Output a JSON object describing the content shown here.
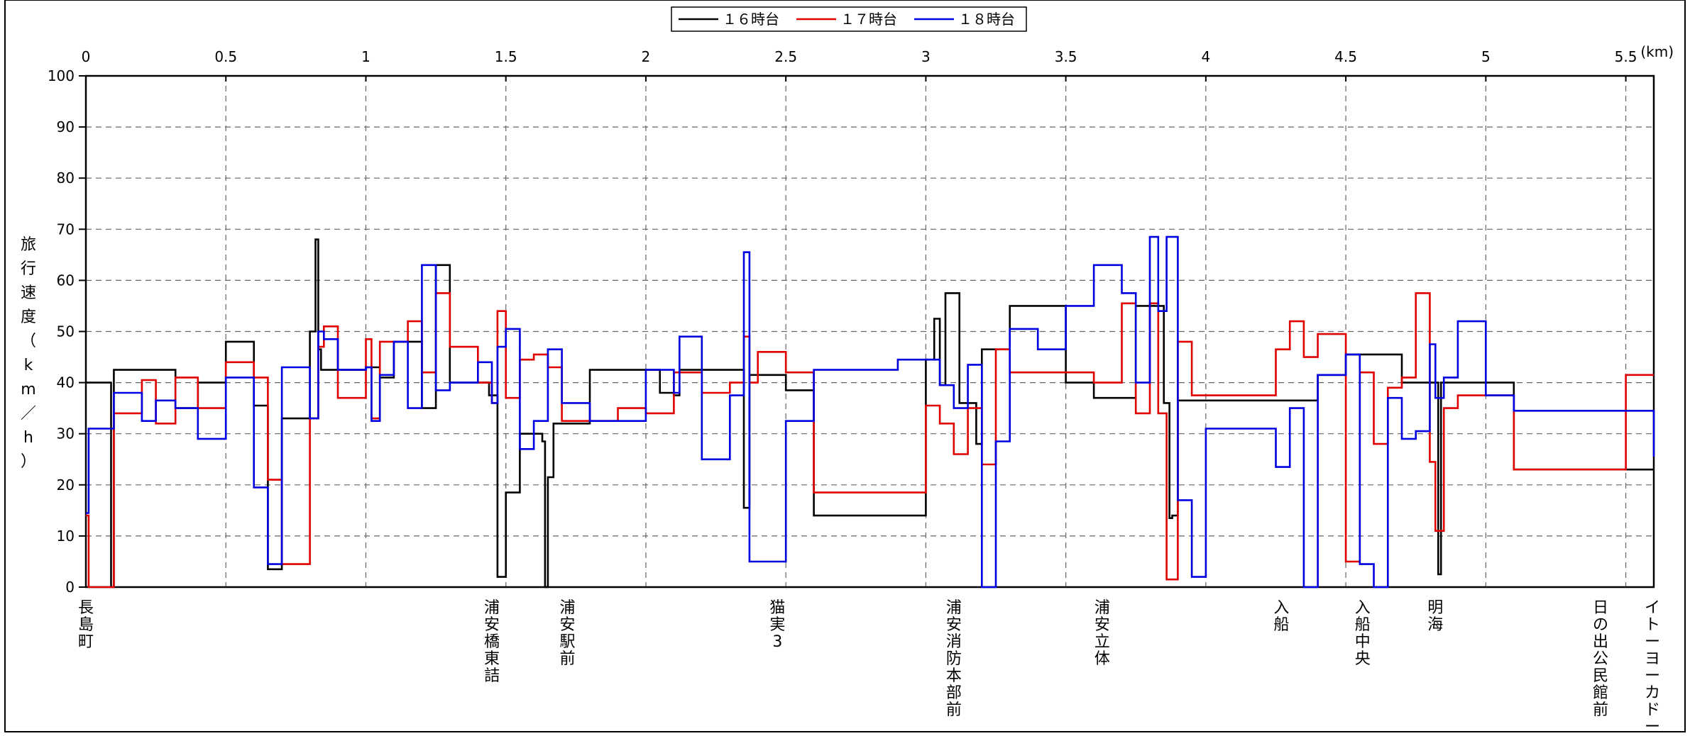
{
  "chart_data": {
    "type": "line",
    "step": true,
    "title": "",
    "xlabel_unit": "(km)",
    "ylabel": "旅行速度（km／h）",
    "xlim": [
      0,
      5.6
    ],
    "ylim": [
      0,
      100
    ],
    "x_ticks": [
      0,
      0.5,
      1,
      1.5,
      2,
      2.5,
      3,
      3.5,
      4,
      4.5,
      5,
      5.5
    ],
    "x_tick_labels": [
      "0",
      "0.5",
      "1",
      "1.5",
      "2",
      "2.5",
      "3",
      "3.5",
      "4",
      "4.5",
      "5",
      "5.5"
    ],
    "y_ticks": [
      0,
      10,
      20,
      30,
      40,
      50,
      60,
      70,
      80,
      90,
      100
    ],
    "y_tick_labels": [
      "0",
      "10",
      "20",
      "30",
      "40",
      "50",
      "60",
      "70",
      "80",
      "90",
      "100"
    ],
    "grid": true,
    "legend_position": "top-center",
    "stations": [
      {
        "x": 0,
        "name": "長島町"
      },
      {
        "x": 1.45,
        "name": "浦安橋東詰"
      },
      {
        "x": 1.72,
        "name": "浦安駅前"
      },
      {
        "x": 2.47,
        "name": "猫実3"
      },
      {
        "x": 3.1,
        "name": "浦安消防本部前"
      },
      {
        "x": 3.63,
        "name": "浦安立体"
      },
      {
        "x": 4.27,
        "name": "入船"
      },
      {
        "x": 4.56,
        "name": "入船中央"
      },
      {
        "x": 4.82,
        "name": "明海"
      },
      {
        "x": 5.41,
        "name": "日の出公民館前"
      },
      {
        "x": 5.6,
        "name": "イトーヨーカドー南"
      }
    ],
    "series": [
      {
        "name": "１６時台",
        "color": "#000000",
        "x": [
          0,
          0.01,
          0.09,
          0.1,
          0.1,
          0.2,
          0.25,
          0.32,
          0.4,
          0.5,
          0.6,
          0.65,
          0.7,
          0.7,
          0.8,
          0.82,
          0.83,
          0.84,
          0.9,
          1.0,
          1.05,
          1.1,
          1.2,
          1.2,
          1.25,
          1.3,
          1.3,
          1.4,
          1.44,
          1.47,
          1.5,
          1.55,
          1.6,
          1.63,
          1.64,
          1.65,
          1.67,
          1.7,
          1.8,
          1.9,
          2.0,
          2.05,
          2.1,
          2.12,
          2.15,
          2.2,
          2.3,
          2.35,
          2.37,
          2.4,
          2.5,
          2.6,
          2.7,
          2.8,
          2.9,
          3.0,
          3.03,
          3.05,
          3.07,
          3.12,
          3.18,
          3.2,
          3.22,
          3.3,
          3.4,
          3.5,
          3.6,
          3.7,
          3.75,
          3.8,
          3.85,
          3.87,
          3.88,
          3.9,
          3.95,
          4.0,
          4.1,
          4.2,
          4.3,
          4.4,
          4.5,
          4.6,
          4.7,
          4.8,
          4.83,
          4.84,
          4.9,
          5.0,
          5.1,
          5.2,
          5.3,
          5.4,
          5.5,
          5.6
        ],
        "y": [
          40,
          40,
          0,
          42.5,
          42.5,
          42.5,
          42.5,
          35,
          40,
          48,
          35.5,
          3.5,
          21.5,
          33,
          50,
          68,
          46.5,
          42.5,
          42.5,
          43,
          41,
          48,
          48,
          35,
          63,
          38.5,
          40,
          40,
          37.5,
          2,
          18.5,
          30,
          30,
          28.5,
          0,
          21.5,
          32,
          32,
          42.5,
          42.5,
          42.5,
          38,
          37.5,
          42.5,
          42.5,
          42.5,
          42.5,
          15.5,
          41.5,
          41.5,
          38.5,
          14,
          14,
          14,
          14,
          44.5,
          52.5,
          39.5,
          57.5,
          36,
          28,
          46.5,
          46.5,
          55,
          55,
          40,
          37,
          37,
          55,
          55,
          36,
          13.5,
          14,
          36.5,
          36.5,
          36.5,
          36.5,
          36.5,
          36.5,
          41.5,
          45.5,
          45.5,
          40,
          40,
          2.5,
          40,
          40,
          40,
          23,
          23,
          23,
          23,
          23,
          23
        ]
      },
      {
        "name": "１７時台",
        "color": "#e00000",
        "x": [
          0,
          0.01,
          0.1,
          0.2,
          0.25,
          0.32,
          0.4,
          0.5,
          0.6,
          0.65,
          0.7,
          0.8,
          0.83,
          0.85,
          0.9,
          1.0,
          1.02,
          1.05,
          1.1,
          1.15,
          1.2,
          1.25,
          1.3,
          1.4,
          1.45,
          1.47,
          1.5,
          1.55,
          1.6,
          1.65,
          1.7,
          1.8,
          1.9,
          2.0,
          2.1,
          2.2,
          2.3,
          2.35,
          2.37,
          2.4,
          2.5,
          2.6,
          2.7,
          2.8,
          2.9,
          3.0,
          3.05,
          3.1,
          3.15,
          3.2,
          3.25,
          3.3,
          3.4,
          3.5,
          3.6,
          3.7,
          3.75,
          3.8,
          3.83,
          3.86,
          3.9,
          3.95,
          4.0,
          4.1,
          4.2,
          4.25,
          4.3,
          4.35,
          4.4,
          4.5,
          4.55,
          4.6,
          4.65,
          4.7,
          4.75,
          4.8,
          4.82,
          4.85,
          4.9,
          5.0,
          5.1,
          5.2,
          5.3,
          5.4,
          5.5,
          5.6
        ],
        "y": [
          14,
          0,
          34,
          40.5,
          32,
          41,
          35,
          44,
          41,
          21,
          4.5,
          33,
          47,
          51,
          37,
          48.5,
          33,
          48,
          48,
          52,
          42,
          57.5,
          47,
          40,
          36,
          54,
          37,
          44.5,
          45.5,
          43,
          32.5,
          32.5,
          35,
          34,
          42,
          38,
          40,
          49,
          40,
          46,
          42,
          18.5,
          18.5,
          18.5,
          18.5,
          35.5,
          32,
          26,
          35,
          24,
          46.5,
          42,
          42,
          42,
          40,
          55.5,
          34,
          55.5,
          34,
          1.5,
          48,
          37.5,
          37.5,
          37.5,
          37.5,
          46.5,
          52,
          45,
          49.5,
          5,
          42,
          28,
          39,
          41,
          57.5,
          24.5,
          11,
          35,
          37.5,
          37.5,
          23,
          23,
          23,
          23,
          41.5,
          41.5
        ]
      },
      {
        "name": "１８時台",
        "color": "#0000e0",
        "x": [
          0,
          0.01,
          0.1,
          0.2,
          0.25,
          0.32,
          0.4,
          0.5,
          0.6,
          0.65,
          0.7,
          0.8,
          0.83,
          0.85,
          0.9,
          1.0,
          1.02,
          1.05,
          1.1,
          1.15,
          1.2,
          1.25,
          1.3,
          1.4,
          1.45,
          1.47,
          1.5,
          1.55,
          1.6,
          1.65,
          1.7,
          1.8,
          1.9,
          2.0,
          2.1,
          2.12,
          2.2,
          2.3,
          2.35,
          2.37,
          2.4,
          2.5,
          2.6,
          2.7,
          2.8,
          2.9,
          3.0,
          3.05,
          3.1,
          3.15,
          3.2,
          3.25,
          3.3,
          3.4,
          3.5,
          3.6,
          3.7,
          3.75,
          3.8,
          3.83,
          3.86,
          3.9,
          3.95,
          4.0,
          4.1,
          4.2,
          4.25,
          4.3,
          4.35,
          4.4,
          4.5,
          4.55,
          4.6,
          4.65,
          4.7,
          4.75,
          4.8,
          4.82,
          4.85,
          4.9,
          5.0,
          5.1,
          5.2,
          5.3,
          5.4,
          5.5,
          5.6
        ],
        "y": [
          14.5,
          31,
          38,
          32.5,
          36.5,
          35,
          29,
          41,
          19.5,
          4.5,
          43,
          33,
          50,
          48.5,
          42.5,
          43,
          32.5,
          41.5,
          48,
          35,
          63,
          38.5,
          40,
          44,
          36,
          47,
          50.5,
          27,
          32.5,
          46.5,
          36,
          32.5,
          32.5,
          42.5,
          38,
          49,
          25,
          37.5,
          65.5,
          5,
          5,
          32.5,
          42.5,
          42.5,
          42.5,
          44.5,
          44.5,
          39.5,
          35,
          43.5,
          0,
          28.5,
          50.5,
          46.5,
          55,
          63,
          57.5,
          40,
          68.5,
          54,
          68.5,
          17,
          2,
          31,
          31,
          31,
          23.5,
          35,
          0,
          41.5,
          45.5,
          4.5,
          0,
          37,
          29,
          30.5,
          47.5,
          37,
          41,
          52,
          37.5,
          34.5,
          34.5,
          34.5,
          34.5,
          34.5,
          25.5
        ]
      }
    ]
  }
}
